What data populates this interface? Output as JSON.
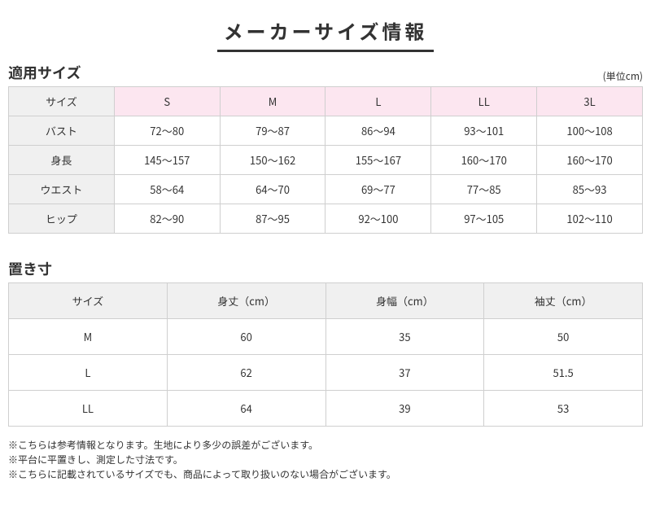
{
  "page_title": "メーカーサイズ情報",
  "section1": {
    "title": "適用サイズ",
    "unit": "(単位cm)",
    "header_label": "サイズ",
    "columns": [
      "S",
      "M",
      "L",
      "LL",
      "3L"
    ],
    "rows": [
      {
        "label": "バスト",
        "values": [
          "72～80",
          "79～87",
          "86～94",
          "93～101",
          "100～108"
        ]
      },
      {
        "label": "身長",
        "values": [
          "145～157",
          "150～162",
          "155～167",
          "160～170",
          "160～170"
        ]
      },
      {
        "label": "ウエスト",
        "values": [
          "58～64",
          "64～70",
          "69～77",
          "77～85",
          "85～93"
        ]
      },
      {
        "label": "ヒップ",
        "values": [
          "82～90",
          "87～95",
          "92～100",
          "97～105",
          "102～110"
        ]
      }
    ],
    "header_bg_label": "#f0f0f0",
    "header_bg_cols": "#fce6f0",
    "row_label_bg": "#f0f0f0"
  },
  "section2": {
    "title": "置き寸",
    "header_label": "サイズ",
    "columns": [
      "身丈（cm）",
      "身幅（cm）",
      "袖丈（cm）"
    ],
    "rows": [
      {
        "label": "M",
        "values": [
          "60",
          "35",
          "50"
        ]
      },
      {
        "label": "L",
        "values": [
          "62",
          "37",
          "51.5"
        ]
      },
      {
        "label": "LL",
        "values": [
          "64",
          "39",
          "53"
        ]
      }
    ],
    "header_bg": "#f0f0f0"
  },
  "notes": [
    "※こちらは参考情報となります。生地により多少の誤差がございます。",
    "※平台に平置きし、測定した寸法です。",
    "※こちらに記載されているサイズでも、商品によって取り扱いのない場合がございます。"
  ],
  "style": {
    "border_color": "#cfcfcf",
    "text_color": "#333333",
    "title_underline_color": "#333333",
    "title_fontsize": 24,
    "section_title_fontsize": 18,
    "cell_fontsize": 13,
    "note_fontsize": 12
  }
}
